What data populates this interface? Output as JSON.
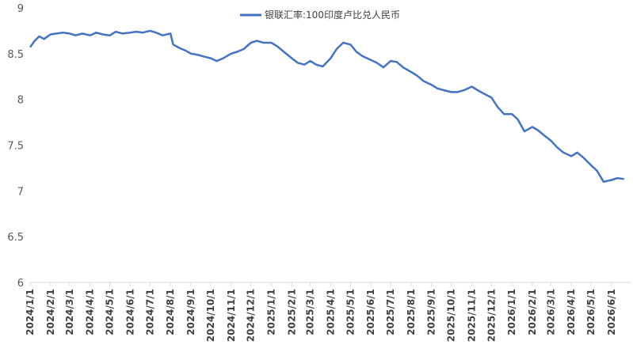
{
  "chart_data": {
    "type": "line",
    "title": "",
    "xlabel": "",
    "ylabel": "",
    "ylim": [
      6,
      9
    ],
    "yticks": [
      "9",
      "8.5",
      "8",
      "7.5",
      "7",
      "6.5",
      "6"
    ],
    "grid": false,
    "legend_position": "top",
    "categories": [
      "2024/1/1",
      "2024/2/1",
      "2024/3/1",
      "2024/4/1",
      "2024/5/1",
      "2024/6/1",
      "2024/7/1",
      "2024/8/1",
      "2024/9/1",
      "2024/10/1",
      "2024/11/1",
      "2024/12/1",
      "2025/1/1",
      "2025/2/1",
      "2025/3/1",
      "2025/4/1",
      "2025/5/1",
      "2025/6/1",
      "2025/7/1",
      "2025/8/1",
      "2025/9/1",
      "2025/10/1",
      "2025/11/1",
      "2025/12/1",
      "2026/1/1",
      "2026/2/1",
      "2026/3/1",
      "2026/4/1",
      "2026/5/1",
      "2026/6/1"
    ],
    "series": [
      {
        "name": "银联汇率:100印度卢比兑人民币",
        "color": "#4472c4",
        "x": [
          "2024/1/1",
          "2024/1/8",
          "2024/1/15",
          "2024/1/22",
          "2024/2/1",
          "2024/2/10",
          "2024/2/20",
          "2024/3/1",
          "2024/3/10",
          "2024/3/20",
          "2024/4/1",
          "2024/4/10",
          "2024/4/20",
          "2024/5/1",
          "2024/5/10",
          "2024/5/20",
          "2024/6/1",
          "2024/6/10",
          "2024/6/20",
          "2024/7/1",
          "2024/7/10",
          "2024/7/20",
          "2024/8/1",
          "2024/8/5",
          "2024/8/15",
          "2024/8/25",
          "2024/9/1",
          "2024/9/10",
          "2024/9/20",
          "2024/10/1",
          "2024/10/10",
          "2024/10/20",
          "2024/11/1",
          "2024/11/10",
          "2024/11/20",
          "2024/12/1",
          "2024/12/10",
          "2024/12/20",
          "2025/1/1",
          "2025/1/10",
          "2025/1/20",
          "2025/2/1",
          "2025/2/10",
          "2025/2/20",
          "2025/3/1",
          "2025/3/10",
          "2025/3/20",
          "2025/4/1",
          "2025/4/10",
          "2025/4/20",
          "2025/5/1",
          "2025/5/10",
          "2025/5/20",
          "2025/6/1",
          "2025/6/10",
          "2025/6/20",
          "2025/7/1",
          "2025/7/10",
          "2025/7/20",
          "2025/8/1",
          "2025/8/10",
          "2025/8/20",
          "2025/9/1",
          "2025/9/10",
          "2025/9/20",
          "2025/10/1",
          "2025/10/10",
          "2025/10/20",
          "2025/11/1",
          "2025/11/10",
          "2025/11/20",
          "2025/12/1",
          "2025/12/10",
          "2025/12/20",
          "2026/1/1",
          "2026/1/10",
          "2026/1/20",
          "2026/2/1",
          "2026/2/10",
          "2026/2/20",
          "2026/3/1",
          "2026/3/10",
          "2026/3/20",
          "2026/4/1",
          "2026/4/10",
          "2026/4/20",
          "2026/5/1",
          "2026/5/10",
          "2026/5/20",
          "2026/6/1",
          "2026/6/10",
          "2026/6/20"
        ],
        "values": [
          8.57,
          8.64,
          8.69,
          8.66,
          8.71,
          8.72,
          8.73,
          8.72,
          8.7,
          8.72,
          8.7,
          8.73,
          8.71,
          8.7,
          8.74,
          8.72,
          8.73,
          8.74,
          8.73,
          8.75,
          8.73,
          8.7,
          8.72,
          8.6,
          8.56,
          8.53,
          8.5,
          8.49,
          8.47,
          8.45,
          8.42,
          8.45,
          8.5,
          8.52,
          8.55,
          8.62,
          8.64,
          8.62,
          8.62,
          8.58,
          8.52,
          8.45,
          8.4,
          8.38,
          8.42,
          8.38,
          8.36,
          8.45,
          8.55,
          8.62,
          8.6,
          8.52,
          8.47,
          8.43,
          8.4,
          8.35,
          8.42,
          8.41,
          8.35,
          8.3,
          8.26,
          8.2,
          8.16,
          8.12,
          8.1,
          8.08,
          8.08,
          8.1,
          8.14,
          8.1,
          8.06,
          8.02,
          7.92,
          7.84,
          7.84,
          7.78,
          7.65,
          7.7,
          7.66,
          7.6,
          7.55,
          7.48,
          7.42,
          7.38,
          7.42,
          7.36,
          7.28,
          7.22,
          7.1,
          7.12,
          7.14,
          7.13
        ]
      }
    ]
  }
}
